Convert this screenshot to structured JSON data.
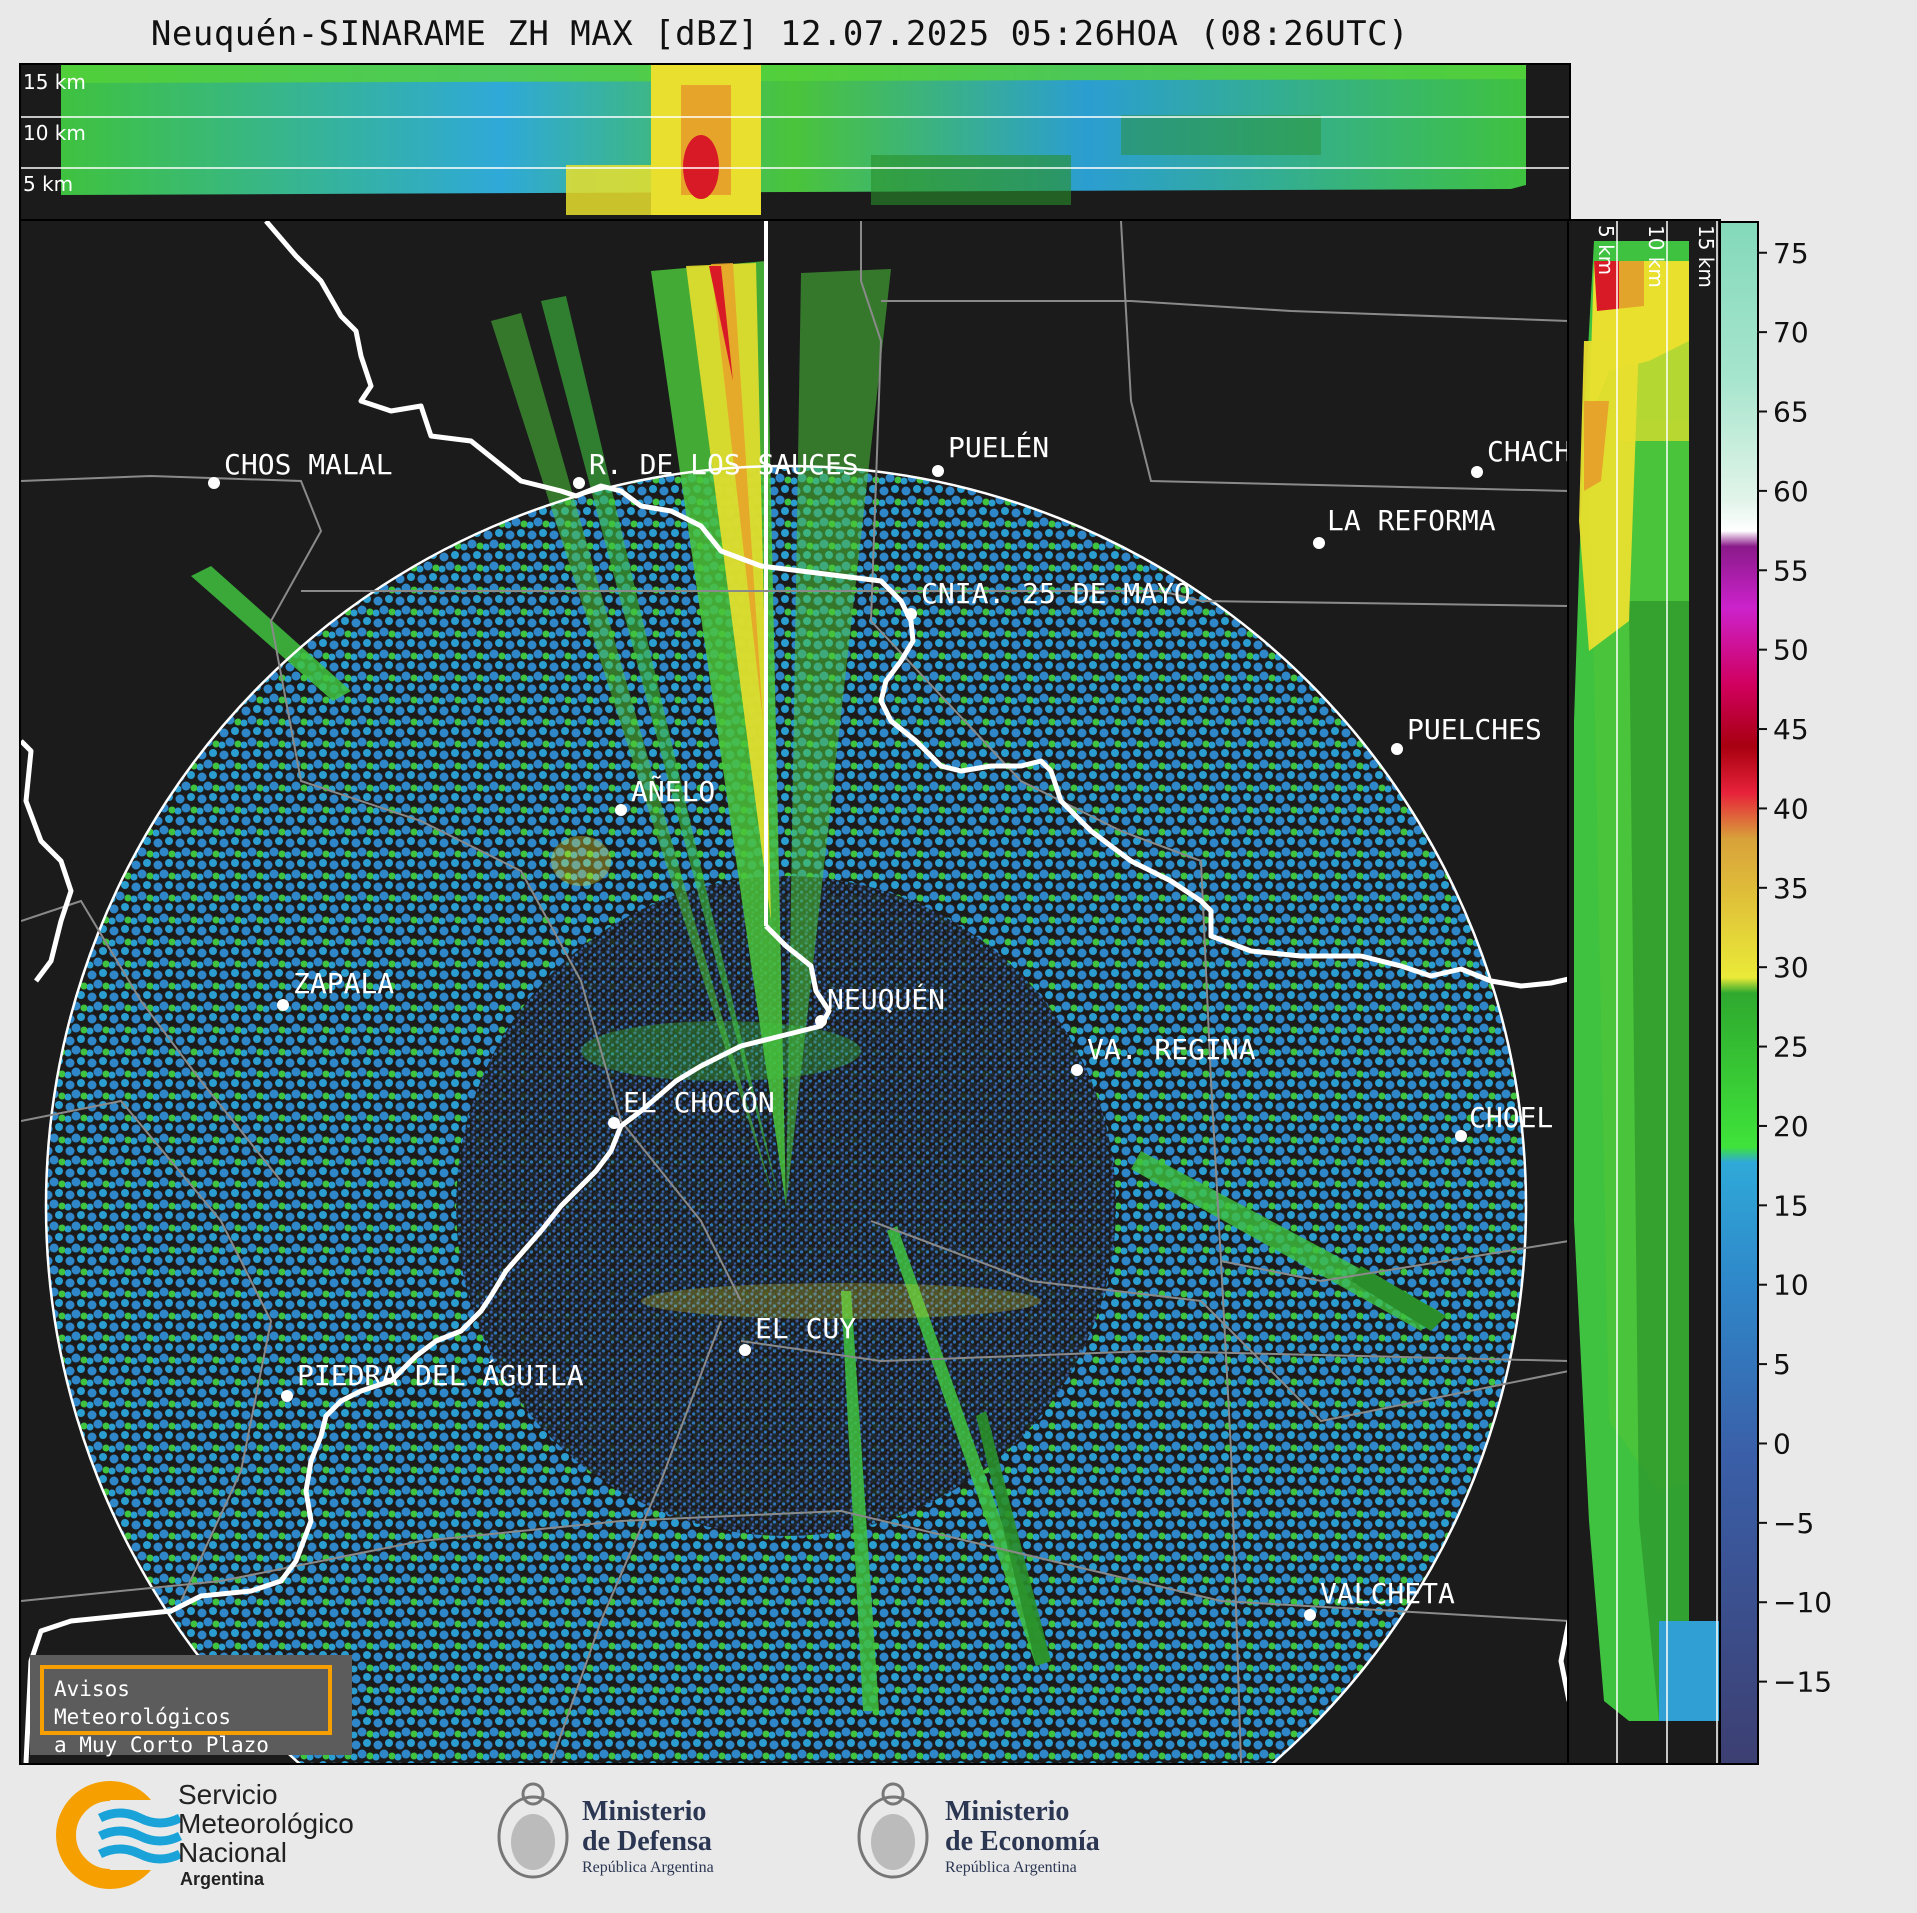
{
  "header": {
    "title": "Neuquén-SINARAME ZH MAX [dBZ] 12.07.2025 05:26HOA (08:26UTC)"
  },
  "top_panel": {
    "height_labels": [
      "15 km",
      "10 km",
      "5 km"
    ]
  },
  "right_panel": {
    "height_labels": [
      "5 km",
      "10 km",
      "15 km"
    ]
  },
  "colorbar": {
    "unit": "dBZ",
    "ticks": [
      "75",
      "70",
      "65",
      "60",
      "55",
      "50",
      "45",
      "40",
      "35",
      "30",
      "25",
      "20",
      "15",
      "10",
      "5",
      "0",
      "−5",
      "−10",
      "−15"
    ],
    "range": [
      -20,
      77
    ],
    "stops": [
      {
        "from": -20,
        "to": 10,
        "color": "#3a4f8a"
      },
      {
        "from": 10,
        "to": 18,
        "color": "#2f87c9"
      },
      {
        "from": 18,
        "to": 30,
        "color": "#2fbd35"
      },
      {
        "from": 30,
        "to": 42,
        "color": "#e8df2e"
      },
      {
        "from": 42,
        "to": 49,
        "color": "#d81a26"
      },
      {
        "from": 49,
        "to": 59,
        "color": "#c01ac0"
      },
      {
        "from": 59,
        "to": 61,
        "color": "#ffffff"
      },
      {
        "from": 61,
        "to": 77,
        "color": "#8fdcc0"
      }
    ]
  },
  "map": {
    "radar": "Neuquén",
    "cities": [
      "CHOS MALAL",
      "R. DE LOS SAUCES",
      "PUELÉN",
      "CHACH",
      "LA REFORMA",
      "CNIA. 25 DE MAYO",
      "PUELCHES",
      "AÑELO",
      "ZAPALA",
      "NEUQUÉN",
      "VA. REGINA",
      "EL CHOCÓN",
      "CHOEL",
      "EL CUY",
      "PIEDRA DEL ÁGUILA",
      "VALCHETA"
    ]
  },
  "notice": {
    "line1": "Avisos Meteorológicos",
    "line2": "a Muy Corto Plazo"
  },
  "logos": {
    "smn": {
      "line1": "Servicio",
      "line2": "Meteorológico",
      "line3": "Nacional",
      "line4": "Argentina"
    },
    "defensa": {
      "line1": "Ministerio",
      "line2": "de Defensa",
      "line3": "República Argentina"
    },
    "economia": {
      "line1": "Ministerio",
      "line2": "de Economía",
      "line3": "República Argentina"
    }
  },
  "colors": {
    "background": "#1b1b1b",
    "low_echo": "#2f87c9",
    "mid_echo": "#2fbd35",
    "strong_echo": "#e8df2e",
    "max_echo": "#d81a26",
    "brand_orange": "#f5a000",
    "brand_blue": "#1aa3d9"
  }
}
